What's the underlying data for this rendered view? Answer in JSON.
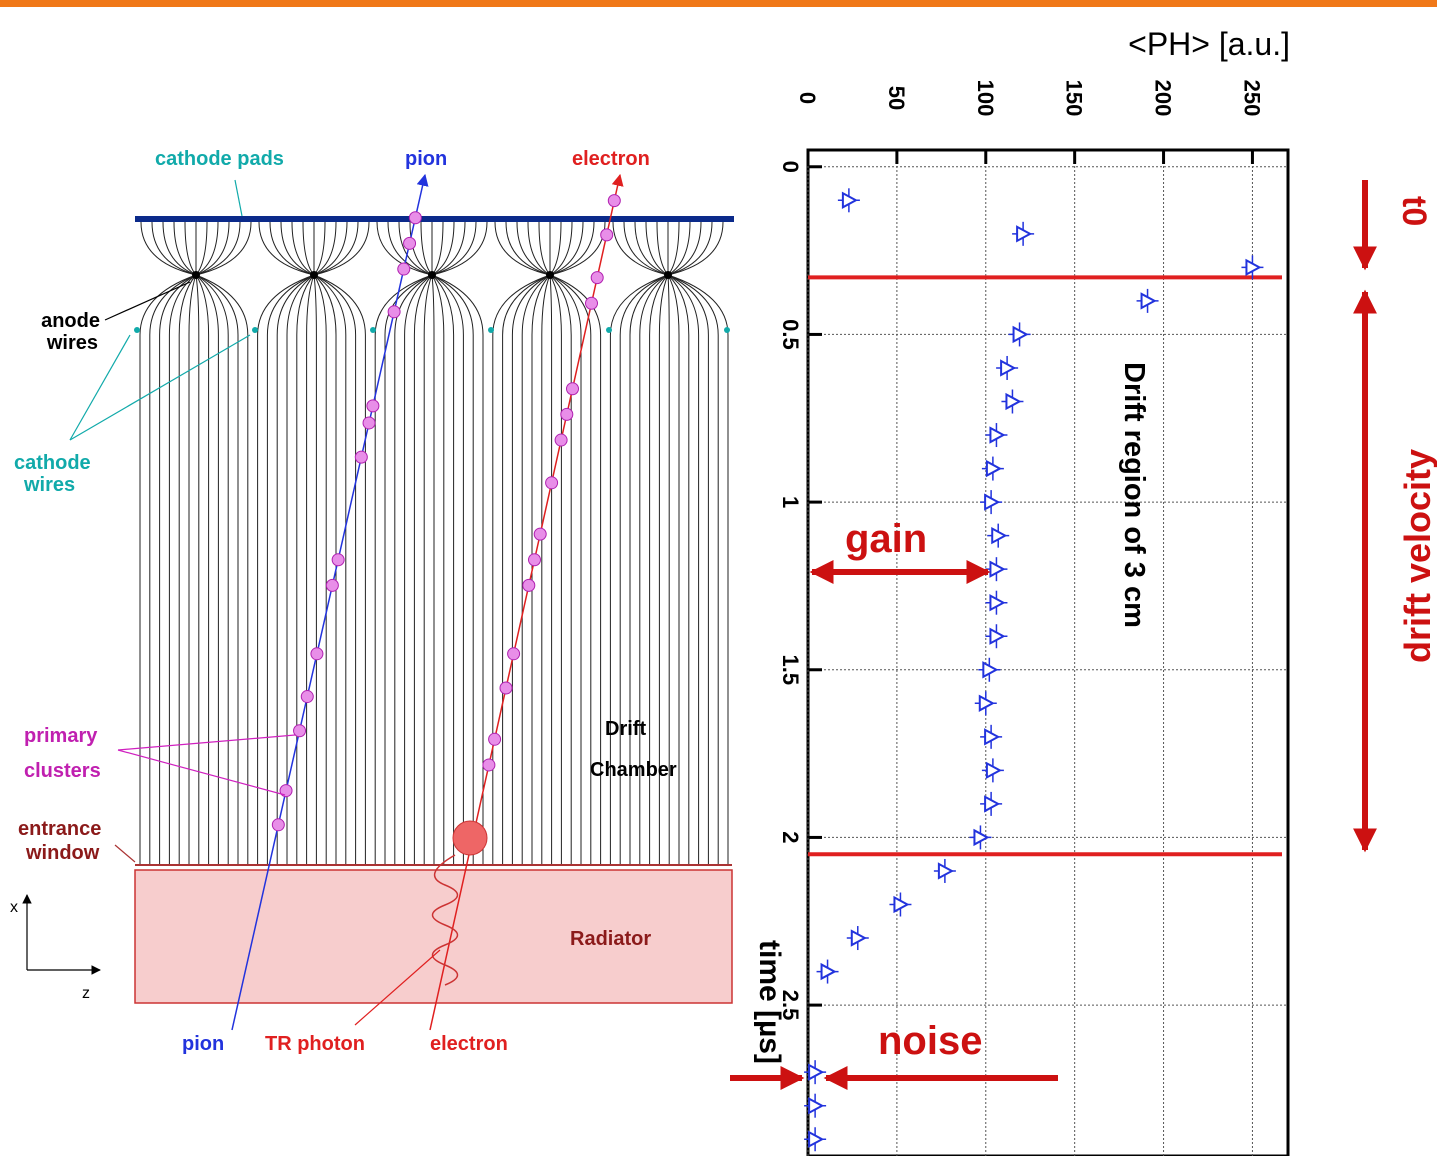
{
  "diagram": {
    "labels": {
      "cathode_pads": "cathode pads",
      "pion_top": "pion",
      "electron_top": "electron",
      "anode_wires": [
        "anode",
        "wires"
      ],
      "cathode_wires": [
        "cathode",
        "wires"
      ],
      "primary_clusters": [
        "primary",
        "clusters"
      ],
      "drift_chamber": [
        "Drift",
        "Chamber"
      ],
      "entrance_window": [
        "entrance",
        "window"
      ],
      "radiator": "Radiator",
      "pion_bottom": "pion",
      "tr_photon": "TR photon",
      "electron_bottom": "electron",
      "axis_x": "x",
      "axis_z": "z"
    }
  },
  "chart_data": {
    "type": "scatter",
    "orientation": "rotated",
    "x_label": "time [µs]",
    "y_label": "<PH> [a.u.]",
    "x": [
      0.1,
      0.2,
      0.3,
      0.4,
      0.5,
      0.6,
      0.7,
      0.8,
      0.9,
      1.0,
      1.1,
      1.2,
      1.3,
      1.4,
      1.5,
      1.6,
      1.7,
      1.8,
      1.9,
      2.0,
      2.1,
      2.2,
      2.3,
      2.4,
      2.7,
      2.8,
      2.9
    ],
    "values": [
      23,
      121,
      250,
      191,
      119,
      112,
      115,
      106,
      104,
      103,
      107,
      106,
      106,
      106,
      102,
      100,
      103,
      104,
      103,
      97,
      77,
      52,
      28,
      11,
      4,
      4,
      4
    ],
    "color": "#2233dd",
    "xlim": [
      -0.05,
      2.95
    ],
    "xticks": [
      0,
      0.5,
      1,
      1.5,
      2,
      2.5
    ],
    "ylim": [
      0,
      270
    ],
    "yticks": [
      0,
      50,
      100,
      150,
      200,
      250
    ],
    "grid": true,
    "reference_lines": {
      "color": "#e02020",
      "values": [
        0.33,
        2.05
      ]
    },
    "annotations": {
      "region": "Drift region of 3 cm",
      "gain": "gain",
      "noise": "noise",
      "t0": "t0",
      "drift_velocity": "drift velocity"
    }
  }
}
